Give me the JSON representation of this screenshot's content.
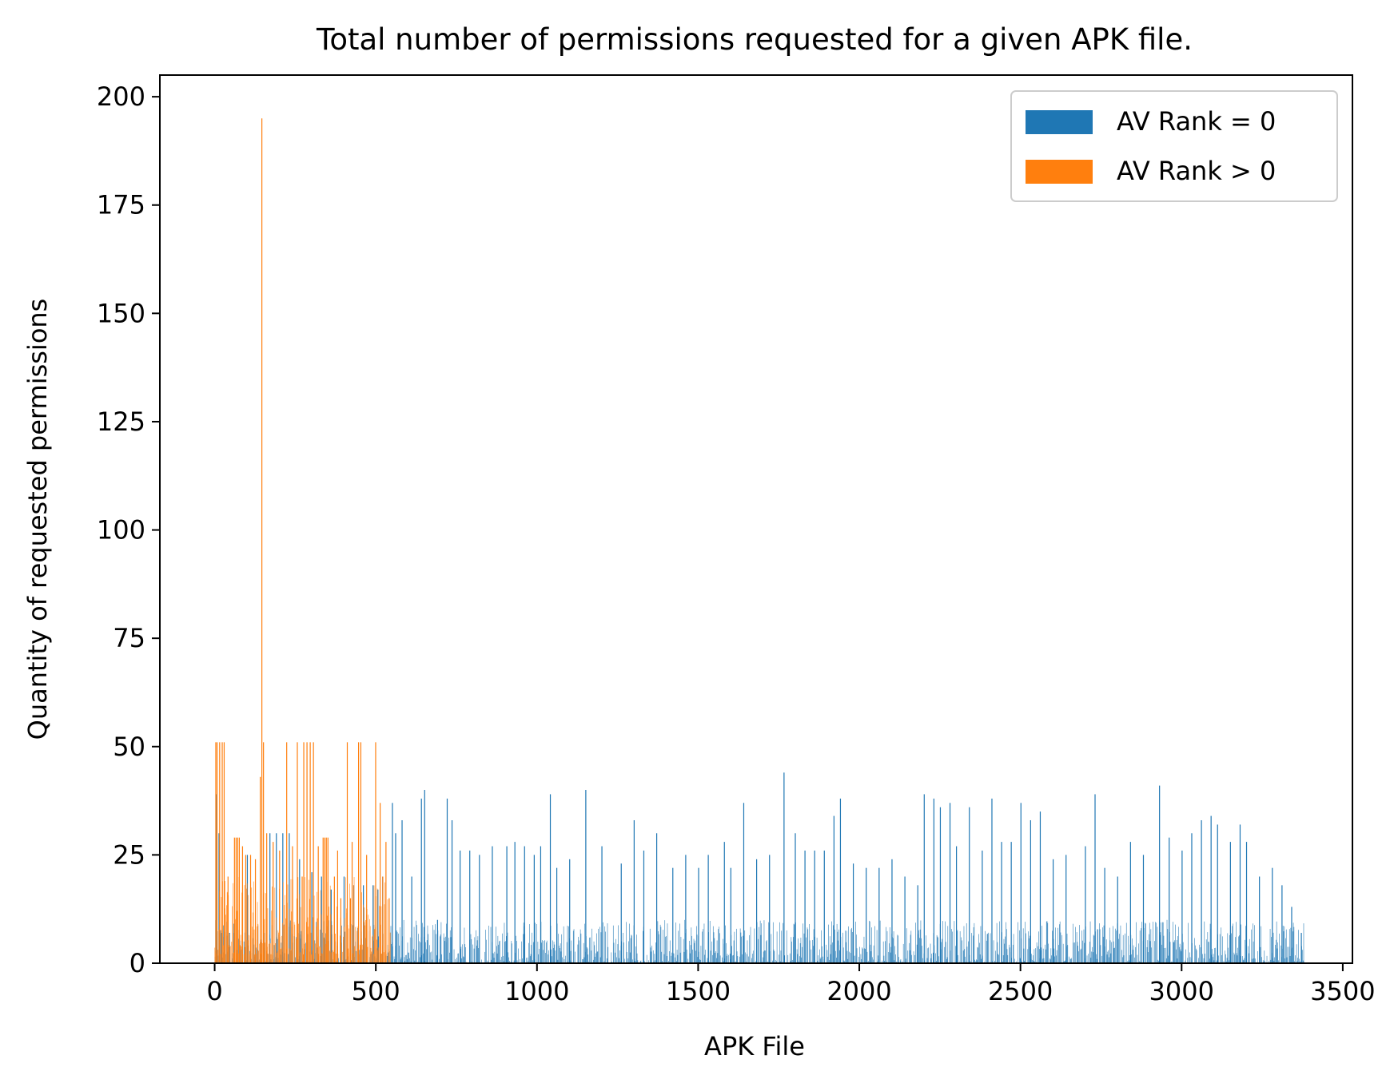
{
  "chart_data": {
    "type": "bar",
    "title": "Total number of permissions requested for a given APK file.",
    "xlabel": "APK File",
    "ylabel": "Quantity of requested permissions",
    "xlim": [
      -170,
      3530
    ],
    "ylim": [
      0,
      205
    ],
    "xticks": [
      0,
      500,
      1000,
      1500,
      2000,
      2500,
      3000,
      3500
    ],
    "xtick_labels": [
      "0",
      "500",
      "1000",
      "1500",
      "2000",
      "2500",
      "3000",
      "3500"
    ],
    "yticks": [
      0,
      25,
      50,
      75,
      100,
      125,
      150,
      175,
      200
    ],
    "ytick_labels": [
      "0",
      "25",
      "50",
      "75",
      "100",
      "125",
      "150",
      "175",
      "200"
    ],
    "grid": false,
    "legend_position": "top-right",
    "series": [
      {
        "name": "AV Rank = 0",
        "color": "#1f77b4",
        "x_range": [
          0,
          3380
        ],
        "typical_range": [
          0,
          10
        ],
        "notable_values": [
          [
            5,
            39
          ],
          [
            12,
            30
          ],
          [
            20,
            7
          ],
          [
            45,
            7
          ],
          [
            60,
            7
          ],
          [
            100,
            25
          ],
          [
            150,
            9
          ],
          [
            170,
            30
          ],
          [
            190,
            30
          ],
          [
            210,
            30
          ],
          [
            230,
            30
          ],
          [
            262,
            24
          ],
          [
            300,
            21
          ],
          [
            330,
            20
          ],
          [
            360,
            17
          ],
          [
            400,
            20
          ],
          [
            430,
            18
          ],
          [
            460,
            18
          ],
          [
            490,
            18
          ],
          [
            505,
            17
          ],
          [
            520,
            20
          ],
          [
            550,
            37
          ],
          [
            560,
            30
          ],
          [
            580,
            33
          ],
          [
            610,
            20
          ],
          [
            640,
            38
          ],
          [
            650,
            40
          ],
          [
            690,
            10
          ],
          [
            720,
            38
          ],
          [
            735,
            33
          ],
          [
            760,
            26
          ],
          [
            790,
            26
          ],
          [
            820,
            25
          ],
          [
            860,
            27
          ],
          [
            905,
            27
          ],
          [
            930,
            28
          ],
          [
            960,
            27
          ],
          [
            990,
            25
          ],
          [
            1010,
            27
          ],
          [
            1040,
            39
          ],
          [
            1060,
            22
          ],
          [
            1100,
            24
          ],
          [
            1150,
            40
          ],
          [
            1200,
            27
          ],
          [
            1260,
            23
          ],
          [
            1300,
            33
          ],
          [
            1330,
            26
          ],
          [
            1370,
            30
          ],
          [
            1420,
            22
          ],
          [
            1460,
            25
          ],
          [
            1500,
            22
          ],
          [
            1530,
            25
          ],
          [
            1580,
            28
          ],
          [
            1600,
            22
          ],
          [
            1640,
            37
          ],
          [
            1680,
            24
          ],
          [
            1720,
            25
          ],
          [
            1765,
            44
          ],
          [
            1800,
            30
          ],
          [
            1830,
            26
          ],
          [
            1860,
            26
          ],
          [
            1890,
            26
          ],
          [
            1920,
            34
          ],
          [
            1940,
            38
          ],
          [
            1980,
            23
          ],
          [
            2020,
            22
          ],
          [
            2060,
            22
          ],
          [
            2100,
            24
          ],
          [
            2140,
            20
          ],
          [
            2180,
            18
          ],
          [
            2200,
            39
          ],
          [
            2230,
            38
          ],
          [
            2250,
            36
          ],
          [
            2280,
            37
          ],
          [
            2300,
            27
          ],
          [
            2340,
            36
          ],
          [
            2380,
            26
          ],
          [
            2410,
            38
          ],
          [
            2440,
            28
          ],
          [
            2470,
            28
          ],
          [
            2500,
            37
          ],
          [
            2530,
            33
          ],
          [
            2560,
            35
          ],
          [
            2600,
            24
          ],
          [
            2640,
            25
          ],
          [
            2700,
            27
          ],
          [
            2730,
            39
          ],
          [
            2760,
            22
          ],
          [
            2800,
            20
          ],
          [
            2840,
            28
          ],
          [
            2880,
            25
          ],
          [
            2930,
            41
          ],
          [
            2960,
            29
          ],
          [
            3000,
            26
          ],
          [
            3030,
            30
          ],
          [
            3060,
            33
          ],
          [
            3090,
            34
          ],
          [
            3110,
            32
          ],
          [
            3150,
            28
          ],
          [
            3180,
            32
          ],
          [
            3200,
            28
          ],
          [
            3240,
            20
          ],
          [
            3280,
            22
          ],
          [
            3310,
            18
          ],
          [
            3340,
            13
          ],
          [
            3370,
            7
          ]
        ]
      },
      {
        "name": "AV Rank > 0",
        "color": "#ff7f0e",
        "x_range": [
          0,
          545
        ],
        "typical_range": [
          2,
          20
        ],
        "notable_values": [
          [
            2,
            51
          ],
          [
            6,
            51
          ],
          [
            14,
            51
          ],
          [
            22,
            51
          ],
          [
            28,
            51
          ],
          [
            40,
            20
          ],
          [
            60,
            29
          ],
          [
            65,
            29
          ],
          [
            70,
            29
          ],
          [
            75,
            29
          ],
          [
            85,
            27
          ],
          [
            95,
            25
          ],
          [
            110,
            25
          ],
          [
            125,
            24
          ],
          [
            140,
            43
          ],
          [
            145,
            195
          ],
          [
            150,
            51
          ],
          [
            160,
            30
          ],
          [
            180,
            28
          ],
          [
            200,
            26
          ],
          [
            222,
            51
          ],
          [
            240,
            27
          ],
          [
            255,
            51
          ],
          [
            270,
            20
          ],
          [
            275,
            51
          ],
          [
            285,
            51
          ],
          [
            295,
            51
          ],
          [
            305,
            51
          ],
          [
            320,
            27
          ],
          [
            335,
            29
          ],
          [
            340,
            29
          ],
          [
            345,
            29
          ],
          [
            350,
            29
          ],
          [
            370,
            20
          ],
          [
            380,
            26
          ],
          [
            390,
            15
          ],
          [
            410,
            51
          ],
          [
            420,
            15
          ],
          [
            425,
            28
          ],
          [
            445,
            51
          ],
          [
            452,
            51
          ],
          [
            470,
            25
          ],
          [
            498,
            51
          ],
          [
            512,
            37
          ],
          [
            520,
            20
          ],
          [
            530,
            28
          ],
          [
            540,
            15
          ]
        ]
      }
    ]
  }
}
